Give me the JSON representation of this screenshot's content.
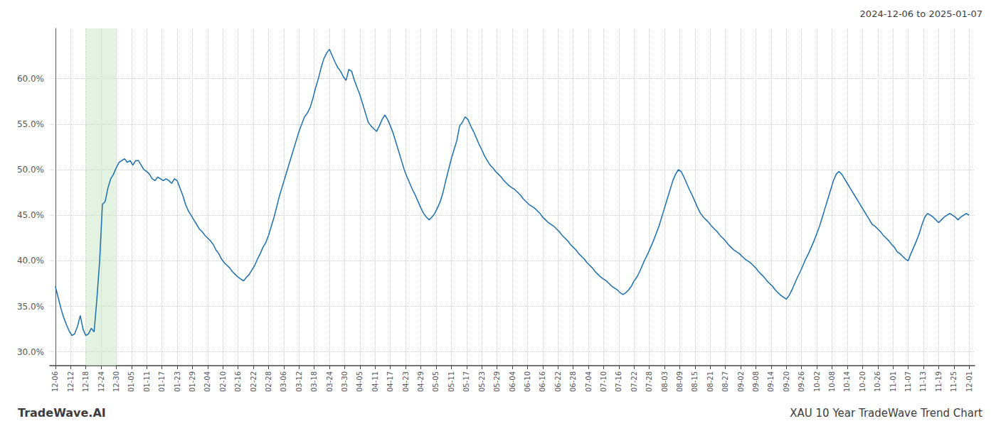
{
  "chart_data": {
    "type": "line",
    "title": "XAU 10 Year TradeWave Trend Chart",
    "subtitle": "2024-12-06 to 2025-01-07",
    "annotations": [
      "TradeWave.AI"
    ],
    "color": "#1a6faf",
    "grid": true,
    "xlim": [
      -2,
      332
    ],
    "xticks": [
      {
        "value": 0,
        "label": "12-06"
      },
      {
        "value": 5.5,
        "label": "12-12"
      },
      {
        "value": 11,
        "label": "12-18"
      },
      {
        "value": 16.5,
        "label": "12-24"
      },
      {
        "value": 22,
        "label": "12-30"
      },
      {
        "value": 27.5,
        "label": "01-05"
      },
      {
        "value": 33,
        "label": "01-11"
      },
      {
        "value": 38.5,
        "label": "01-17"
      },
      {
        "value": 44,
        "label": "01-23"
      },
      {
        "value": 49.5,
        "label": "01-29"
      },
      {
        "value": 55,
        "label": "02-04"
      },
      {
        "value": 60.5,
        "label": "02-10"
      },
      {
        "value": 66,
        "label": "02-16"
      },
      {
        "value": 71.5,
        "label": "02-22"
      },
      {
        "value": 77,
        "label": "02-28"
      },
      {
        "value": 82.5,
        "label": "03-06"
      },
      {
        "value": 88,
        "label": "03-12"
      },
      {
        "value": 93.5,
        "label": "03-18"
      },
      {
        "value": 99,
        "label": "03-24"
      },
      {
        "value": 104.5,
        "label": "03-30"
      },
      {
        "value": 110,
        "label": "04-05"
      },
      {
        "value": 115.5,
        "label": "04-11"
      },
      {
        "value": 121,
        "label": "04-17"
      },
      {
        "value": 126.5,
        "label": "04-23"
      },
      {
        "value": 132,
        "label": "04-29"
      },
      {
        "value": 137.5,
        "label": "05-05"
      },
      {
        "value": 143,
        "label": "05-11"
      },
      {
        "value": 148.5,
        "label": "05-17"
      },
      {
        "value": 154,
        "label": "05-23"
      },
      {
        "value": 159.5,
        "label": "05-29"
      },
      {
        "value": 165,
        "label": "06-04"
      },
      {
        "value": 170.5,
        "label": "06-10"
      },
      {
        "value": 176,
        "label": "06-16"
      },
      {
        "value": 181.5,
        "label": "06-22"
      },
      {
        "value": 187,
        "label": "06-28"
      },
      {
        "value": 192.5,
        "label": "07-04"
      },
      {
        "value": 198,
        "label": "07-10"
      },
      {
        "value": 203.5,
        "label": "07-16"
      },
      {
        "value": 209,
        "label": "07-22"
      },
      {
        "value": 214.5,
        "label": "07-28"
      },
      {
        "value": 220,
        "label": "08-03"
      },
      {
        "value": 225.5,
        "label": "08-09"
      },
      {
        "value": 231,
        "label": "08-15"
      },
      {
        "value": 236.5,
        "label": "08-21"
      },
      {
        "value": 242,
        "label": "08-27"
      },
      {
        "value": 247.5,
        "label": "09-02"
      },
      {
        "value": 253,
        "label": "09-08"
      },
      {
        "value": 258.5,
        "label": "09-14"
      },
      {
        "value": 264,
        "label": "09-20"
      },
      {
        "value": 269.5,
        "label": "09-26"
      },
      {
        "value": 275,
        "label": "10-02"
      },
      {
        "value": 280.5,
        "label": "10-08"
      },
      {
        "value": 286,
        "label": "10-14"
      },
      {
        "value": 291.5,
        "label": "10-20"
      },
      {
        "value": 297,
        "label": "10-26"
      },
      {
        "value": 302.5,
        "label": "11-01"
      },
      {
        "value": 308,
        "label": "11-07"
      },
      {
        "value": 313.5,
        "label": "11-13"
      },
      {
        "value": 319,
        "label": "11-19"
      },
      {
        "value": 324.5,
        "label": "11-25"
      },
      {
        "value": 330,
        "label": "12-01"
      }
    ],
    "ylim": [
      0.285,
      0.655
    ],
    "yticks": [
      {
        "value": 0.3,
        "label": "30.0%"
      },
      {
        "value": 0.35,
        "label": "35.0%"
      },
      {
        "value": 0.4,
        "label": "40.0%"
      },
      {
        "value": 0.45,
        "label": "45.0%"
      },
      {
        "value": 0.5,
        "label": "50.0%"
      },
      {
        "value": 0.55,
        "label": "55.0%"
      },
      {
        "value": 0.6,
        "label": "60.0%"
      }
    ],
    "shaded_region": {
      "x": [
        11,
        22
      ],
      "color": "#c8e6c4"
    },
    "values": [
      0.372,
      0.36,
      0.348,
      0.338,
      0.33,
      0.323,
      0.318,
      0.32,
      0.328,
      0.34,
      0.325,
      0.318,
      0.32,
      0.326,
      0.322,
      0.358,
      0.4,
      0.462,
      0.465,
      0.48,
      0.49,
      0.495,
      0.502,
      0.508,
      0.51,
      0.512,
      0.508,
      0.51,
      0.505,
      0.51,
      0.51,
      0.505,
      0.5,
      0.498,
      0.495,
      0.49,
      0.488,
      0.492,
      0.49,
      0.488,
      0.49,
      0.488,
      0.485,
      0.49,
      0.488,
      0.48,
      0.472,
      0.462,
      0.455,
      0.45,
      0.445,
      0.44,
      0.435,
      0.432,
      0.428,
      0.425,
      0.422,
      0.418,
      0.412,
      0.408,
      0.402,
      0.398,
      0.395,
      0.392,
      0.388,
      0.385,
      0.382,
      0.38,
      0.378,
      0.382,
      0.385,
      0.39,
      0.395,
      0.402,
      0.408,
      0.415,
      0.42,
      0.428,
      0.438,
      0.448,
      0.46,
      0.472,
      0.482,
      0.492,
      0.502,
      0.512,
      0.522,
      0.532,
      0.542,
      0.55,
      0.558,
      0.562,
      0.568,
      0.578,
      0.59,
      0.6,
      0.612,
      0.622,
      0.628,
      0.632,
      0.625,
      0.618,
      0.612,
      0.608,
      0.602,
      0.598,
      0.61,
      0.608,
      0.598,
      0.59,
      0.582,
      0.572,
      0.562,
      0.552,
      0.548,
      0.545,
      0.542,
      0.548,
      0.555,
      0.56,
      0.555,
      0.548,
      0.54,
      0.53,
      0.52,
      0.51,
      0.5,
      0.492,
      0.485,
      0.478,
      0.472,
      0.465,
      0.458,
      0.452,
      0.448,
      0.445,
      0.448,
      0.452,
      0.458,
      0.465,
      0.475,
      0.488,
      0.5,
      0.512,
      0.522,
      0.532,
      0.548,
      0.552,
      0.558,
      0.555,
      0.548,
      0.542,
      0.535,
      0.528,
      0.522,
      0.515,
      0.51,
      0.505,
      0.502,
      0.498,
      0.495,
      0.492,
      0.488,
      0.485,
      0.482,
      0.48,
      0.478,
      0.475,
      0.472,
      0.468,
      0.465,
      0.462,
      0.46,
      0.458,
      0.455,
      0.452,
      0.448,
      0.445,
      0.442,
      0.44,
      0.438,
      0.435,
      0.432,
      0.428,
      0.425,
      0.422,
      0.418,
      0.415,
      0.412,
      0.408,
      0.405,
      0.402,
      0.398,
      0.395,
      0.392,
      0.388,
      0.385,
      0.382,
      0.38,
      0.378,
      0.375,
      0.372,
      0.37,
      0.368,
      0.365,
      0.363,
      0.365,
      0.368,
      0.372,
      0.378,
      0.382,
      0.388,
      0.395,
      0.402,
      0.408,
      0.415,
      0.422,
      0.43,
      0.438,
      0.448,
      0.458,
      0.468,
      0.478,
      0.488,
      0.495,
      0.5,
      0.498,
      0.492,
      0.485,
      0.478,
      0.472,
      0.465,
      0.458,
      0.452,
      0.448,
      0.445,
      0.442,
      0.438,
      0.435,
      0.432,
      0.428,
      0.425,
      0.422,
      0.418,
      0.415,
      0.412,
      0.41,
      0.408,
      0.405,
      0.402,
      0.4,
      0.398,
      0.395,
      0.392,
      0.388,
      0.385,
      0.382,
      0.378,
      0.375,
      0.372,
      0.368,
      0.365,
      0.362,
      0.36,
      0.358,
      0.362,
      0.368,
      0.375,
      0.382,
      0.388,
      0.395,
      0.402,
      0.408,
      0.415,
      0.422,
      0.43,
      0.438,
      0.448,
      0.458,
      0.468,
      0.478,
      0.488,
      0.495,
      0.498,
      0.495,
      0.49,
      0.485,
      0.48,
      0.475,
      0.47,
      0.465,
      0.46,
      0.455,
      0.45,
      0.445,
      0.44,
      0.438,
      0.435,
      0.432,
      0.428,
      0.425,
      0.422,
      0.418,
      0.415,
      0.41,
      0.408,
      0.405,
      0.402,
      0.4,
      0.408,
      0.415,
      0.422,
      0.43,
      0.44,
      0.448,
      0.452,
      0.45,
      0.448,
      0.445,
      0.442,
      0.445,
      0.448,
      0.45,
      0.452,
      0.45,
      0.448,
      0.445,
      0.448,
      0.45,
      0.452,
      0.45
    ]
  }
}
